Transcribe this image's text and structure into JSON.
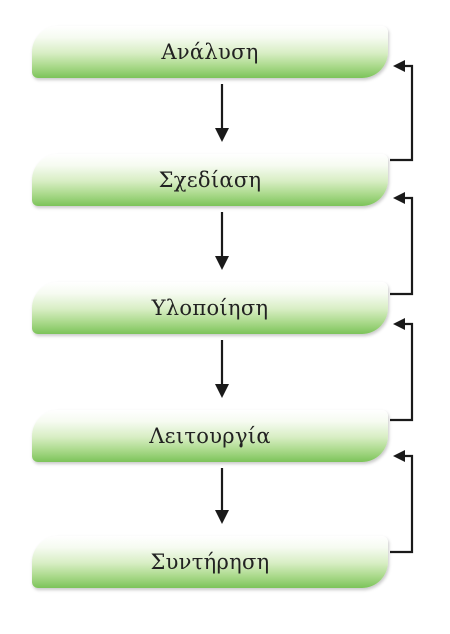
{
  "diagram": {
    "stages": [
      {
        "label": "Ανάλυση"
      },
      {
        "label": "Σχεδίαση"
      },
      {
        "label": "Υλοποίηση"
      },
      {
        "label": "Λειτουργία"
      },
      {
        "label": "Συντήρηση"
      }
    ],
    "colors": {
      "box_light": "#ffffff",
      "box_dark": "#7cc35a",
      "arrow": "#1a1a1a",
      "text": "#222222"
    }
  }
}
